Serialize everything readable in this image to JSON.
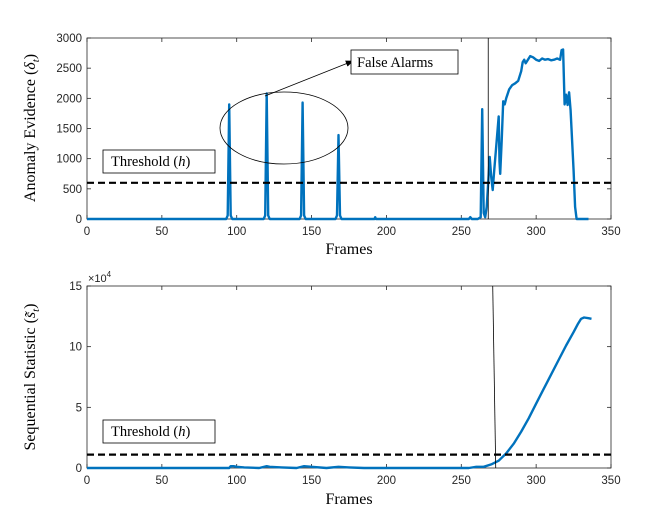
{
  "chart_data": [
    {
      "type": "line",
      "ylabel": "Anomaly Evidence (δ_t)",
      "ylabel_plain": "Anomaly Evidence (",
      "ylabel_sym": "δ",
      "ylabel_sub": "t",
      "xlabel": "Frames",
      "xlim": [
        0,
        350
      ],
      "ylim": [
        0,
        3000
      ],
      "xticks": [
        0,
        50,
        100,
        150,
        200,
        250,
        300,
        350
      ],
      "yticks": [
        0,
        500,
        1000,
        1500,
        2000,
        2500,
        3000
      ],
      "threshold": 600,
      "threshold_label": "Threshold (h)",
      "threshold_label_plain": "Threshold (",
      "threshold_label_sym": "h",
      "annotation": "False Alarms",
      "change_point": 268,
      "series": [
        {
          "color": "#0072BD",
          "points": [
            [
              0,
              0
            ],
            [
              93,
              0
            ],
            [
              94,
              60
            ],
            [
              95,
              1900
            ],
            [
              96,
              60
            ],
            [
              97,
              0
            ],
            [
              118,
              0
            ],
            [
              119,
              60
            ],
            [
              120,
              2080
            ],
            [
              121,
              60
            ],
            [
              122,
              0
            ],
            [
              142,
              0
            ],
            [
              143,
              60
            ],
            [
              144,
              1930
            ],
            [
              145,
              60
            ],
            [
              146,
              0
            ],
            [
              166,
              0
            ],
            [
              167,
              60
            ],
            [
              168,
              1390
            ],
            [
              169,
              60
            ],
            [
              170,
              0
            ],
            [
              192,
              0
            ],
            [
              192.5,
              30
            ],
            [
              193,
              0
            ],
            [
              255,
              0
            ],
            [
              256,
              30
            ],
            [
              257,
              0
            ],
            [
              261,
              0
            ],
            [
              263,
              30
            ],
            [
              264,
              1820
            ],
            [
              265,
              100
            ],
            [
              266,
              30
            ],
            [
              267,
              200
            ],
            [
              268,
              600
            ],
            [
              269,
              1030
            ],
            [
              270,
              700
            ],
            [
              271,
              480
            ],
            [
              272,
              800
            ],
            [
              273,
              1100
            ],
            [
              274,
              1400
            ],
            [
              275,
              1700
            ],
            [
              275.5,
              950
            ],
            [
              276,
              750
            ],
            [
              277,
              1300
            ],
            [
              278,
              1950
            ],
            [
              279,
              1900
            ],
            [
              280,
              2000
            ],
            [
              282,
              2150
            ],
            [
              284,
              2220
            ],
            [
              286,
              2250
            ],
            [
              288,
              2290
            ],
            [
              290,
              2450
            ],
            [
              291,
              2600
            ],
            [
              292,
              2640
            ],
            [
              293,
              2580
            ],
            [
              294,
              2620
            ],
            [
              296,
              2700
            ],
            [
              298,
              2680
            ],
            [
              300,
              2640
            ],
            [
              302,
              2620
            ],
            [
              304,
              2660
            ],
            [
              306,
              2640
            ],
            [
              308,
              2650
            ],
            [
              310,
              2630
            ],
            [
              312,
              2640
            ],
            [
              314,
              2660
            ],
            [
              316,
              2640
            ],
            [
              317,
              2800
            ],
            [
              318,
              2810
            ],
            [
              319,
              1900
            ],
            [
              320,
              2060
            ],
            [
              321,
              1890
            ],
            [
              322,
              2100
            ],
            [
              323,
              1800
            ],
            [
              324,
              1300
            ],
            [
              325,
              800
            ],
            [
              326,
              200
            ],
            [
              327,
              0
            ],
            [
              335,
              0
            ]
          ]
        }
      ]
    },
    {
      "type": "line",
      "ylabel": "Sequential Statistic (s̃_t)",
      "ylabel_plain": "Sequential Statistic (",
      "ylabel_sym": "s̃",
      "ylabel_sub": "t",
      "xlabel": "Frames",
      "xlim": [
        0,
        350
      ],
      "ylim": [
        0,
        15
      ],
      "y_multiplier": "×10",
      "y_multiplier_exp": "4",
      "xticks": [
        0,
        50,
        100,
        150,
        200,
        250,
        300,
        350
      ],
      "yticks": [
        0,
        5,
        10,
        15
      ],
      "threshold": 1.1,
      "threshold_label": "Threshold (h)",
      "threshold_label_plain": "Threshold (",
      "threshold_label_sym": "h",
      "change_point": 271,
      "series": [
        {
          "color": "#0072BD",
          "points": [
            [
              0,
              0
            ],
            [
              95,
              0
            ],
            [
              96,
              0.15
            ],
            [
              98,
              0.15
            ],
            [
              100,
              0.1
            ],
            [
              105,
              0.05
            ],
            [
              115,
              0
            ],
            [
              120,
              0.15
            ],
            [
              122,
              0.1
            ],
            [
              130,
              0.05
            ],
            [
              140,
              0
            ],
            [
              145,
              0.15
            ],
            [
              150,
              0.1
            ],
            [
              160,
              0
            ],
            [
              168,
              0.1
            ],
            [
              175,
              0.05
            ],
            [
              185,
              0
            ],
            [
              255,
              0
            ],
            [
              260,
              0.1
            ],
            [
              265,
              0.1
            ],
            [
              270,
              0.3
            ],
            [
              275,
              0.6
            ],
            [
              280,
              1.2
            ],
            [
              285,
              2.0
            ],
            [
              290,
              3.0
            ],
            [
              295,
              4.1
            ],
            [
              300,
              5.3
            ],
            [
              305,
              6.5
            ],
            [
              310,
              7.7
            ],
            [
              315,
              8.9
            ],
            [
              320,
              10.1
            ],
            [
              325,
              11.2
            ],
            [
              328,
              11.9
            ],
            [
              330,
              12.3
            ],
            [
              332,
              12.4
            ],
            [
              335,
              12.35
            ],
            [
              337,
              12.3
            ]
          ]
        }
      ]
    }
  ]
}
